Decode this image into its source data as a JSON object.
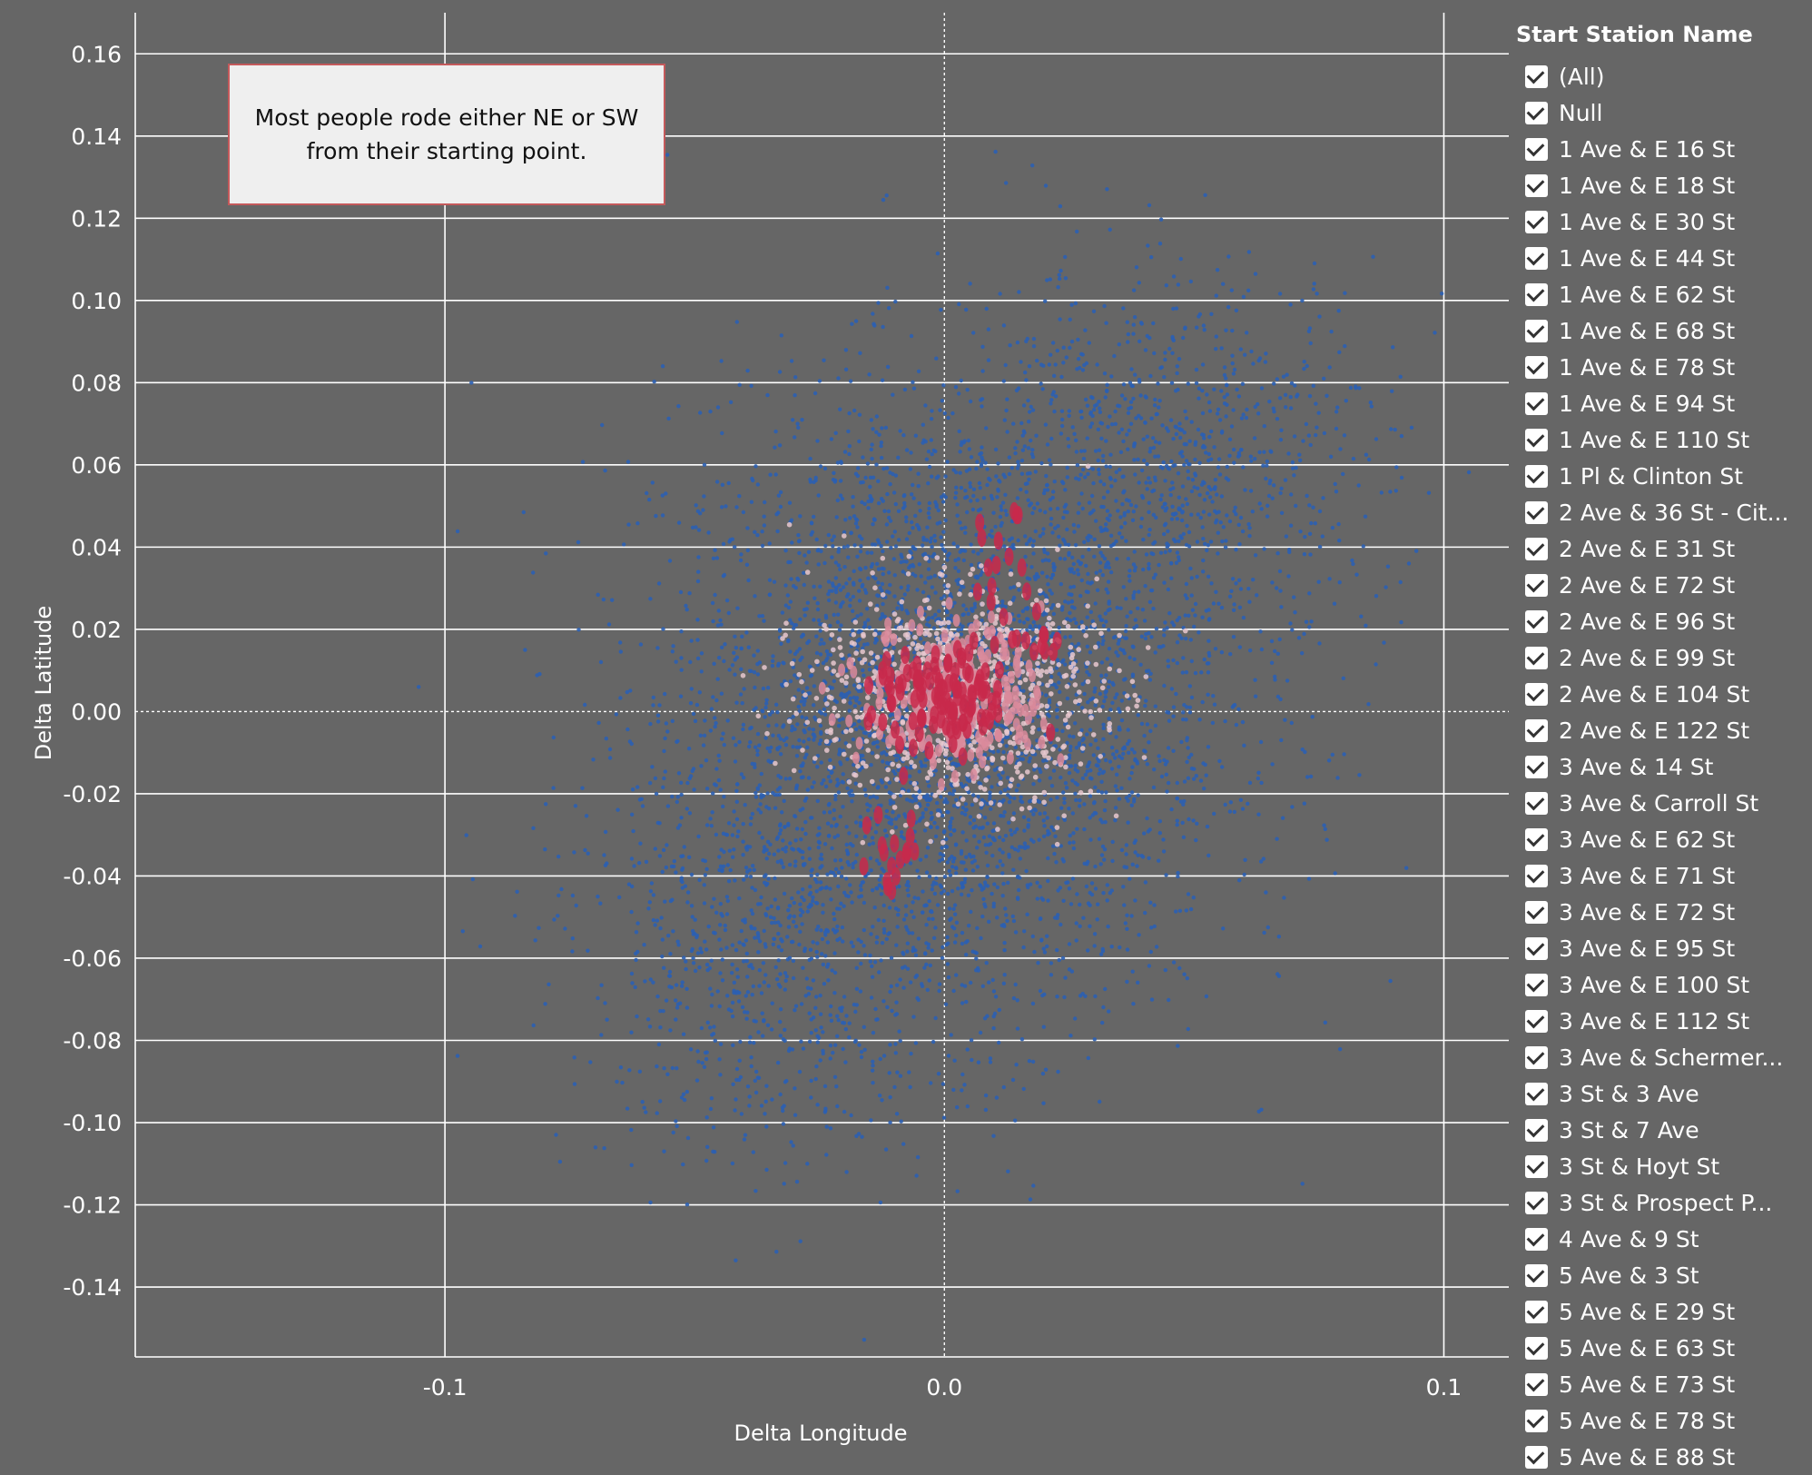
{
  "chart_data": {
    "type": "scatter",
    "xlabel": "Delta Longitude",
    "ylabel": "Delta Latitude",
    "xlim": [
      -0.162,
      0.113
    ],
    "ylim": [
      -0.157,
      0.17
    ],
    "x_ticks": [
      -0.1,
      0.0,
      0.1
    ],
    "x_tick_labels": [
      "-0.1",
      "0.0",
      "0.1"
    ],
    "y_ticks": [
      0.16,
      0.14,
      0.12,
      0.1,
      0.08,
      0.06,
      0.04,
      0.02,
      0.0,
      -0.02,
      -0.04,
      -0.06,
      -0.08,
      -0.1,
      -0.12,
      -0.14
    ],
    "y_tick_labels": [
      "0.16",
      "0.14",
      "0.12",
      "0.10",
      "0.08",
      "0.06",
      "0.04",
      "0.02",
      "0.00",
      "-0.02",
      "-0.04",
      "-0.06",
      "-0.08",
      "-0.10",
      "-0.12",
      "-0.14"
    ],
    "grid": "horizontal lines plus vertical lines at x ticks",
    "zero_lines": "dotted",
    "colors": {
      "background": "#666666",
      "sparse_points": "#2b5fb3",
      "dense_points_light": "#e7c8cf",
      "dense_points_mid": "#d98a9b",
      "dense_points_strong": "#c8294b",
      "gridline": "#ffffff"
    },
    "clusters": [
      {
        "series": "sparse",
        "cx": 0.0,
        "cy": 0.0,
        "sx": 0.028,
        "sy": 0.038,
        "count": 3800
      },
      {
        "series": "sparse",
        "cx": 0.045,
        "cy": 0.06,
        "sx": 0.022,
        "sy": 0.024,
        "count": 900
      },
      {
        "series": "sparse",
        "cx": -0.035,
        "cy": -0.06,
        "sx": 0.02,
        "sy": 0.025,
        "count": 700
      },
      {
        "series": "light",
        "cx": 0.002,
        "cy": 0.004,
        "sx": 0.014,
        "sy": 0.013,
        "count": 900
      },
      {
        "series": "mid",
        "cx": 0.002,
        "cy": 0.004,
        "sx": 0.009,
        "sy": 0.009,
        "count": 260
      },
      {
        "series": "strong",
        "cx": 0.0,
        "cy": 0.003,
        "sx": 0.007,
        "sy": 0.006,
        "count": 110
      },
      {
        "series": "strong",
        "cx": -0.01,
        "cy": -0.035,
        "sx": 0.003,
        "sy": 0.008,
        "count": 18
      },
      {
        "series": "strong",
        "cx": 0.012,
        "cy": 0.035,
        "sx": 0.003,
        "sy": 0.01,
        "count": 16
      },
      {
        "series": "strong",
        "cx": 0.019,
        "cy": 0.017,
        "sx": 0.004,
        "sy": 0.002,
        "count": 10
      }
    ],
    "annotation": "Most people rode either NE or SW from their starting point."
  },
  "legend": {
    "title": "Start Station Name",
    "items": [
      "(All)",
      "Null",
      "1 Ave & E 16 St",
      "1 Ave & E 18 St",
      "1 Ave & E 30 St",
      "1 Ave & E 44 St",
      "1 Ave & E 62 St",
      "1 Ave & E 68 St",
      "1 Ave & E 78 St",
      "1 Ave & E 94 St",
      "1 Ave & E 110 St",
      "1 Pl & Clinton St",
      "2 Ave & 36 St - Cit...",
      "2 Ave & E 31 St",
      "2 Ave & E 72 St",
      "2 Ave & E 96 St",
      "2 Ave & E 99 St",
      "2 Ave & E 104 St",
      "2 Ave & E 122 St",
      "3 Ave & 14 St",
      "3 Ave & Carroll St",
      "3 Ave & E 62 St",
      "3 Ave & E 71 St",
      "3 Ave & E 72 St",
      "3 Ave & E 95 St",
      "3 Ave & E 100 St",
      "3 Ave & E 112 St",
      "3 Ave & Schermer...",
      "3 St & 3 Ave",
      "3 St & 7 Ave",
      "3 St & Hoyt St",
      "3 St & Prospect P...",
      "4 Ave & 9 St",
      "5 Ave & 3 St",
      "5 Ave & E 29 St",
      "5 Ave & E 63 St",
      "5 Ave & E 73 St",
      "5 Ave & E 78 St",
      "5 Ave & E 88 St"
    ]
  }
}
